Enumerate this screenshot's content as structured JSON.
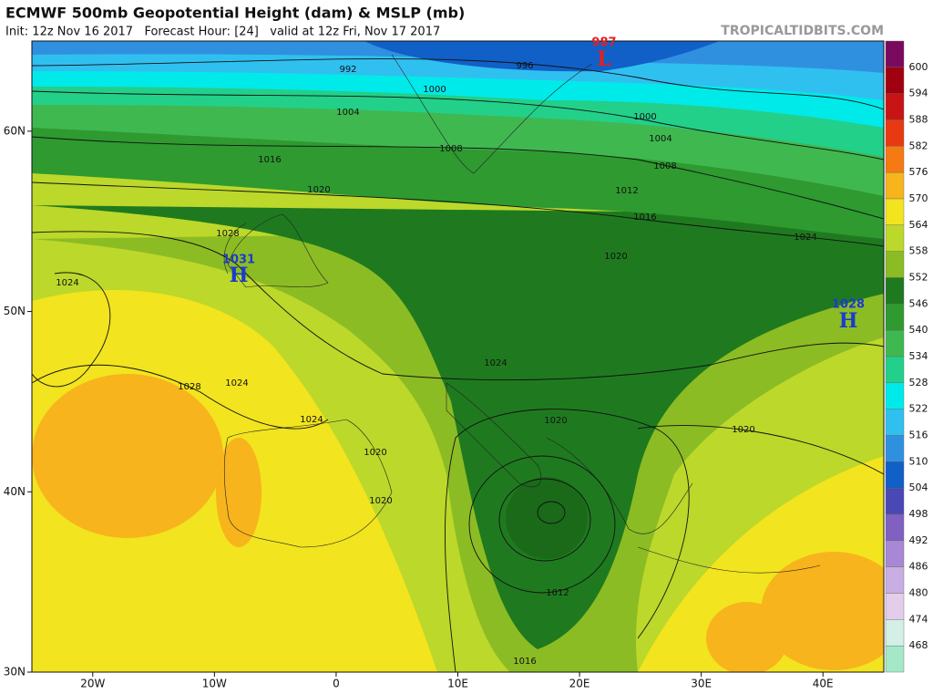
{
  "header": {
    "title": "ECMWF 500mb Geopotential Height (dam) & MSLP (mb)",
    "subtitle": "Init: 12z Nov 16 2017   Forecast Hour: [24]   valid at 12z Fri, Nov 17 2017",
    "site": "TROPICALTIDBITS.COM"
  },
  "map": {
    "xlim": [
      -25,
      45
    ],
    "ylim": [
      30,
      65
    ],
    "xticks": [
      {
        "value": -20,
        "label": "20W"
      },
      {
        "value": -10,
        "label": "10W"
      },
      0,
      {
        "value": 10,
        "label": "10E"
      },
      {
        "value": 20,
        "label": "20E"
      },
      {
        "value": 30,
        "label": "30E"
      },
      {
        "value": 40,
        "label": "40E"
      }
    ],
    "yticks": [
      {
        "value": 30,
        "label": "30N"
      },
      {
        "value": 40,
        "label": "40N"
      },
      {
        "value": 50,
        "label": "50N"
      },
      {
        "value": 60,
        "label": "60N"
      }
    ],
    "isobar_labels": [
      "992",
      "996",
      "1000",
      "1004",
      "1008",
      "1016",
      "1020",
      "1028",
      "1024",
      "1024",
      "1028",
      "1024",
      "1024",
      "1020",
      "1020",
      "1020",
      "1012",
      "1016",
      "1000",
      "1004",
      "1008",
      "1012",
      "1016",
      "1020",
      "1024",
      "1020"
    ],
    "centers": [
      {
        "value": "987",
        "letter": "L"
      },
      {
        "value": "1031",
        "letter": "H"
      },
      {
        "value": "1028",
        "letter": "H"
      }
    ]
  },
  "colorbar": {
    "levels": [
      600,
      594,
      588,
      582,
      576,
      570,
      564,
      558,
      552,
      546,
      540,
      534,
      528,
      522,
      516,
      510,
      504,
      498,
      492,
      486,
      480,
      474,
      468
    ],
    "colors": [
      "#7a0a5e",
      "#a00010",
      "#c81414",
      "#e83a12",
      "#f57a12",
      "#f8b41c",
      "#f2e41e",
      "#bcd82a",
      "#8cbc24",
      "#1f7a1f",
      "#2e9a30",
      "#40b850",
      "#22d08a",
      "#00eaea",
      "#30c0f0",
      "#3090e0",
      "#1060c8",
      "#4a48b4",
      "#8060c0",
      "#a888d4",
      "#c8aee2",
      "#e4cdea",
      "#d4f0e6",
      "#a4e8c8"
    ]
  }
}
